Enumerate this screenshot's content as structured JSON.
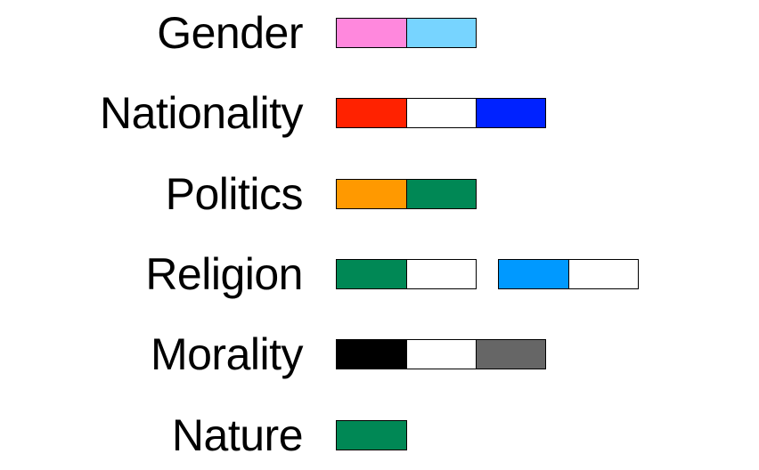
{
  "rows": [
    {
      "label": "Gender",
      "groups": [
        [
          "#ff88dd",
          "#77d4ff"
        ]
      ]
    },
    {
      "label": "Nationality",
      "groups": [
        [
          "#ff2200",
          "#ffffff",
          "#0022ff"
        ]
      ]
    },
    {
      "label": "Politics",
      "groups": [
        [
          "#ff9900",
          "#008855"
        ]
      ]
    },
    {
      "label": "Religion",
      "groups": [
        [
          "#008855",
          "#ffffff"
        ],
        [
          "#0099ff",
          "#ffffff"
        ]
      ]
    },
    {
      "label": "Morality",
      "groups": [
        [
          "#000000",
          "#ffffff",
          "#666666"
        ]
      ]
    },
    {
      "label": "Nature",
      "groups": [
        [
          "#008855"
        ]
      ]
    }
  ]
}
